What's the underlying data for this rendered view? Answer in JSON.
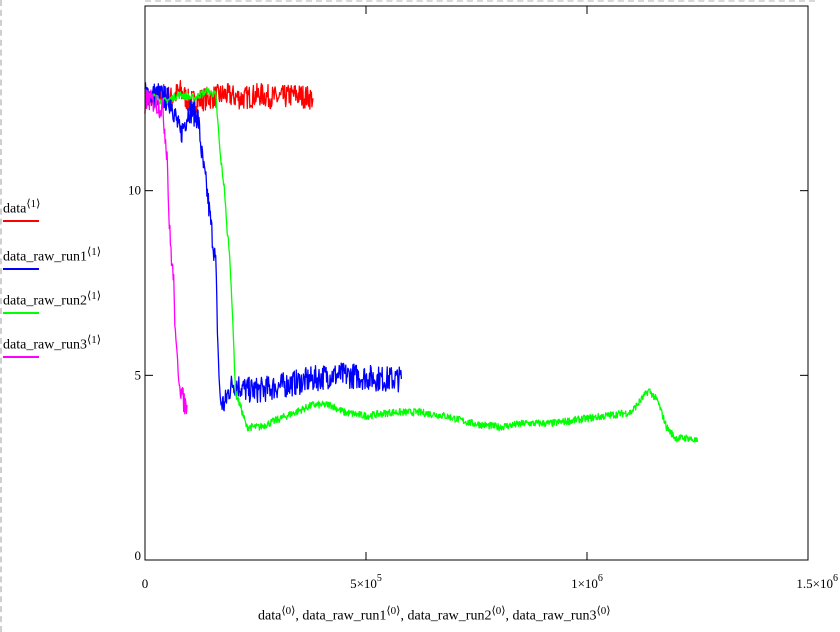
{
  "chart_data": {
    "type": "line",
    "title": "",
    "xlabel_parts": [
      {
        "name": "data",
        "index": "⟨0⟩",
        "sep": ", "
      },
      {
        "name": "data_raw_run1",
        "index": "⟨0⟩",
        "sep": ", "
      },
      {
        "name": "data_raw_run2",
        "index": "⟨0⟩",
        "sep": ", "
      },
      {
        "name": "data_raw_run3",
        "index": "⟨0⟩",
        "sep": ""
      }
    ],
    "xlim": [
      0,
      1500000
    ],
    "ylim": [
      0,
      15
    ],
    "x_ticks": [
      {
        "value": 0,
        "mant": "0",
        "exp": ""
      },
      {
        "value": 500000,
        "mant": "5×10",
        "exp": "5"
      },
      {
        "value": 1000000,
        "mant": "1×10",
        "exp": "6"
      },
      {
        "value": 1500000,
        "mant": "1.5×10",
        "exp": "6"
      }
    ],
    "y_ticks": [
      {
        "value": 0,
        "label": "0"
      },
      {
        "value": 5,
        "label": "5"
      },
      {
        "value": 10,
        "label": "10"
      }
    ],
    "grid": false,
    "legend_position": "left",
    "series": [
      {
        "name": "data",
        "index": "⟨1⟩",
        "color": "#ff0000",
        "noise": 0.32,
        "points": [
          [
            0,
            12.4
          ],
          [
            20000,
            12.5
          ],
          [
            40000,
            12.6
          ],
          [
            60000,
            12.5
          ],
          [
            80000,
            12.7
          ],
          [
            100000,
            12.4
          ],
          [
            140000,
            12.5
          ],
          [
            180000,
            12.6
          ],
          [
            220000,
            12.5
          ],
          [
            260000,
            12.6
          ],
          [
            300000,
            12.5
          ],
          [
            340000,
            12.6
          ],
          [
            380000,
            12.5
          ]
        ]
      },
      {
        "name": "data_raw_run1",
        "index": "⟨1⟩",
        "color": "#0000ff",
        "noise": 0.35,
        "points": [
          [
            0,
            12.6
          ],
          [
            30000,
            12.6
          ],
          [
            60000,
            12.4
          ],
          [
            80000,
            11.5
          ],
          [
            100000,
            12.2
          ],
          [
            120000,
            12.0
          ],
          [
            130000,
            10.8
          ],
          [
            140000,
            10.0
          ],
          [
            150000,
            9.0
          ],
          [
            160000,
            8.0
          ],
          [
            165000,
            5.8
          ],
          [
            170000,
            4.3
          ],
          [
            180000,
            4.2
          ],
          [
            190000,
            4.6
          ],
          [
            200000,
            4.8
          ],
          [
            230000,
            4.6
          ],
          [
            260000,
            4.6
          ],
          [
            300000,
            4.7
          ],
          [
            340000,
            4.8
          ],
          [
            380000,
            4.9
          ],
          [
            420000,
            5.0
          ],
          [
            460000,
            5.0
          ],
          [
            500000,
            4.95
          ],
          [
            540000,
            4.9
          ],
          [
            580000,
            4.9
          ]
        ]
      },
      {
        "name": "data_raw_run2",
        "index": "⟨1⟩",
        "color": "#00ff00",
        "noise": 0.1,
        "points": [
          [
            0,
            12.7
          ],
          [
            40000,
            12.4
          ],
          [
            80000,
            12.6
          ],
          [
            110000,
            12.5
          ],
          [
            140000,
            12.7
          ],
          [
            160000,
            12.6
          ],
          [
            170000,
            11.0
          ],
          [
            180000,
            10.0
          ],
          [
            185000,
            9.0
          ],
          [
            190000,
            8.5
          ],
          [
            195000,
            7.5
          ],
          [
            200000,
            6.0
          ],
          [
            205000,
            4.5
          ],
          [
            215000,
            4.2
          ],
          [
            230000,
            3.6
          ],
          [
            260000,
            3.6
          ],
          [
            300000,
            3.8
          ],
          [
            340000,
            4.0
          ],
          [
            380000,
            4.2
          ],
          [
            420000,
            4.2
          ],
          [
            450000,
            4.0
          ],
          [
            500000,
            3.9
          ],
          [
            560000,
            4.0
          ],
          [
            620000,
            4.0
          ],
          [
            680000,
            3.9
          ],
          [
            740000,
            3.7
          ],
          [
            800000,
            3.6
          ],
          [
            860000,
            3.7
          ],
          [
            920000,
            3.7
          ],
          [
            980000,
            3.8
          ],
          [
            1040000,
            3.9
          ],
          [
            1100000,
            4.0
          ],
          [
            1140000,
            4.6
          ],
          [
            1160000,
            4.3
          ],
          [
            1180000,
            3.6
          ],
          [
            1200000,
            3.3
          ],
          [
            1230000,
            3.3
          ],
          [
            1250000,
            3.2
          ]
        ]
      },
      {
        "name": "data_raw_run3",
        "index": "⟨1⟩",
        "color": "#ff00ff",
        "noise": 0.3,
        "points": [
          [
            0,
            12.5
          ],
          [
            20000,
            12.4
          ],
          [
            40000,
            12.2
          ],
          [
            50000,
            11.0
          ],
          [
            55000,
            9.0
          ],
          [
            60000,
            8.2
          ],
          [
            65000,
            7.5
          ],
          [
            70000,
            5.7
          ],
          [
            75000,
            5.2
          ],
          [
            80000,
            4.7
          ],
          [
            85000,
            4.4
          ],
          [
            90000,
            4.2
          ],
          [
            95000,
            4.2
          ]
        ]
      }
    ]
  }
}
